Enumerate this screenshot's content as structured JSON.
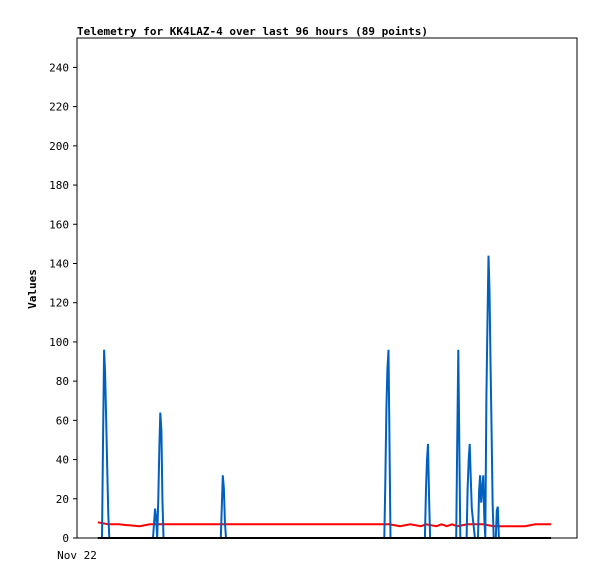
{
  "chart_data": {
    "type": "line",
    "title": "Telemetry for KK4LAZ-4 over last 96 hours (89 points)",
    "xlabel": "",
    "ylabel": "Values",
    "x_tick_labels": [
      "Nov 22"
    ],
    "xlim": [
      0,
      96
    ],
    "ylim": [
      0,
      255
    ],
    "y_ticks": [
      0,
      20,
      40,
      60,
      80,
      100,
      120,
      140,
      160,
      180,
      200,
      220,
      240
    ],
    "grid": false,
    "legend": "none",
    "series": [
      {
        "color": "#ff0000",
        "points": [
          [
            4,
            8
          ],
          [
            6,
            7
          ],
          [
            8,
            7
          ],
          [
            10,
            6.5
          ],
          [
            12,
            6
          ],
          [
            14,
            7
          ],
          [
            16,
            7
          ],
          [
            20,
            7
          ],
          [
            30,
            7
          ],
          [
            40,
            7
          ],
          [
            50,
            7
          ],
          [
            60,
            7
          ],
          [
            62,
            6
          ],
          [
            64,
            7
          ],
          [
            66,
            6
          ],
          [
            67,
            7
          ],
          [
            69,
            6
          ],
          [
            70,
            7
          ],
          [
            71,
            6
          ],
          [
            72,
            7
          ],
          [
            73,
            6
          ],
          [
            75,
            7
          ],
          [
            78,
            7
          ],
          [
            80,
            6
          ],
          [
            86,
            6
          ],
          [
            88,
            7
          ],
          [
            91,
            7
          ]
        ]
      },
      {
        "color": "#0060c0",
        "points": [
          [
            4.8,
            0
          ],
          [
            5.0,
            48
          ],
          [
            5.2,
            96
          ],
          [
            5.4,
            84
          ],
          [
            5.6,
            60
          ],
          [
            5.8,
            36
          ],
          [
            6.0,
            12
          ],
          [
            6.2,
            0
          ],
          [
            14.6,
            0
          ],
          [
            14.8,
            8
          ],
          [
            15.0,
            15
          ],
          [
            15.2,
            10
          ],
          [
            15.4,
            0
          ],
          [
            15.6,
            20
          ],
          [
            15.8,
            45
          ],
          [
            16.0,
            64
          ],
          [
            16.2,
            55
          ],
          [
            16.4,
            20
          ],
          [
            16.6,
            0
          ],
          [
            27.6,
            0
          ],
          [
            27.8,
            16
          ],
          [
            28.0,
            32
          ],
          [
            28.2,
            25
          ],
          [
            28.4,
            8
          ],
          [
            28.6,
            0
          ],
          [
            59.0,
            0
          ],
          [
            59.2,
            28
          ],
          [
            59.4,
            66
          ],
          [
            59.6,
            86
          ],
          [
            59.8,
            96
          ],
          [
            60.0,
            48
          ],
          [
            60.2,
            0
          ],
          [
            66.8,
            0
          ],
          [
            67.0,
            25
          ],
          [
            67.2,
            40
          ],
          [
            67.4,
            48
          ],
          [
            67.6,
            20
          ],
          [
            67.8,
            0
          ],
          [
            72.8,
            0
          ],
          [
            73.0,
            48
          ],
          [
            73.2,
            96
          ],
          [
            73.4,
            48
          ],
          [
            73.6,
            0
          ],
          [
            74.8,
            0
          ],
          [
            75.0,
            25
          ],
          [
            75.2,
            40
          ],
          [
            75.4,
            48
          ],
          [
            75.6,
            30
          ],
          [
            75.8,
            15
          ],
          [
            76.0,
            10
          ],
          [
            76.2,
            5
          ],
          [
            76.4,
            0
          ],
          [
            77.0,
            0
          ],
          [
            77.2,
            24
          ],
          [
            77.4,
            32
          ],
          [
            77.6,
            18
          ],
          [
            77.8,
            25
          ],
          [
            78.0,
            32
          ],
          [
            78.2,
            10
          ],
          [
            78.4,
            0
          ],
          [
            78.6,
            72
          ],
          [
            78.8,
            108
          ],
          [
            79.0,
            144
          ],
          [
            79.2,
            126
          ],
          [
            79.4,
            90
          ],
          [
            79.6,
            54
          ],
          [
            79.8,
            18
          ],
          [
            80.0,
            0
          ],
          [
            80.4,
            0
          ],
          [
            80.6,
            14
          ],
          [
            80.8,
            16
          ],
          [
            81.0,
            0
          ]
        ]
      },
      {
        "color": "#000000",
        "points": [
          [
            4,
            0
          ],
          [
            91,
            0
          ]
        ]
      }
    ]
  }
}
